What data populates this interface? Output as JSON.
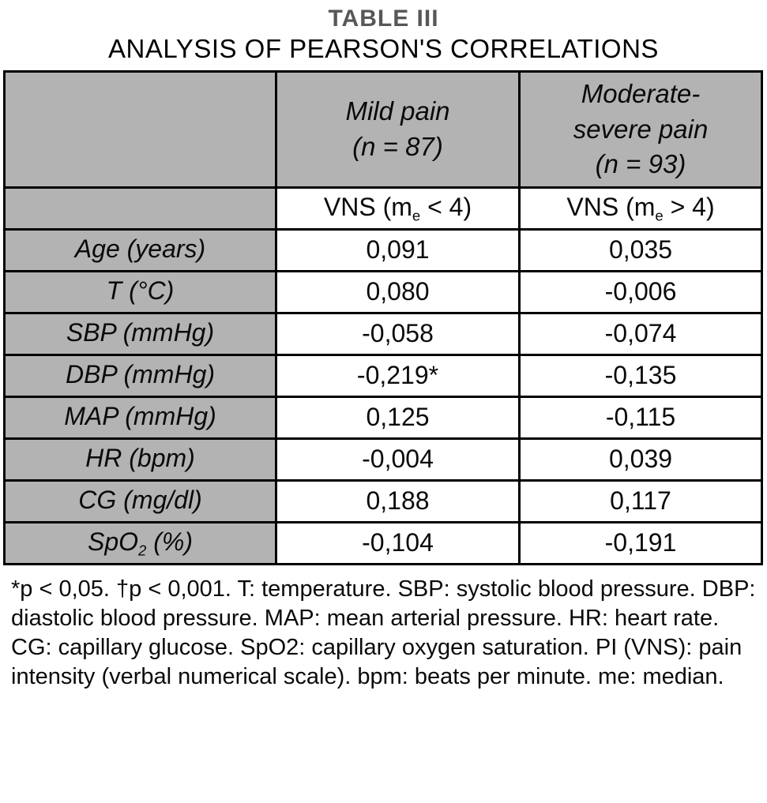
{
  "title": {
    "line1": "TABLE III",
    "line2": "ANALYSIS OF PEARSON'S CORRELATIONS"
  },
  "table": {
    "columns": [
      {
        "lines": [
          "Mild pain",
          "(n = 87)"
        ]
      },
      {
        "lines": [
          "Moderate-",
          "severe pain",
          "(n = 93)"
        ]
      }
    ],
    "subheader": [
      {
        "prefix": "VNS (m",
        "sub": "e",
        "suffix": " < 4)"
      },
      {
        "prefix": "VNS (m",
        "sub": "e",
        "suffix": " > 4)"
      }
    ],
    "rows": [
      {
        "label": "Age (years)",
        "label_sub": "",
        "label_suffix": "",
        "mild": "0,091",
        "moderate_severe": "0,035"
      },
      {
        "label": "T (°C)",
        "label_sub": "",
        "label_suffix": "",
        "mild": "0,080",
        "moderate_severe": "-0,006"
      },
      {
        "label": "SBP (mmHg)",
        "label_sub": "",
        "label_suffix": "",
        "mild": "-0,058",
        "moderate_severe": "-0,074"
      },
      {
        "label": "DBP (mmHg)",
        "label_sub": "",
        "label_suffix": "",
        "mild": "-0,219*",
        "moderate_severe": "-0,135"
      },
      {
        "label": "MAP (mmHg)",
        "label_sub": "",
        "label_suffix": "",
        "mild": "0,125",
        "moderate_severe": "-0,115"
      },
      {
        "label": "HR (bpm)",
        "label_sub": "",
        "label_suffix": "",
        "mild": "-0,004",
        "moderate_severe": "0,039"
      },
      {
        "label": "CG (mg/dl)",
        "label_sub": "",
        "label_suffix": "",
        "mild": "0,188",
        "moderate_severe": "0,117"
      },
      {
        "label": "SpO",
        "label_sub": "2",
        "label_suffix": " (%)",
        "mild": "-0,104",
        "moderate_severe": "-0,191"
      }
    ]
  },
  "footnote": "*p < 0,05. †p < 0,001. T: temperature. SBP: systolic blood pressure. DBP: diastolic blood pressure. MAP: mean arterial pressure. HR: heart rate. CG: capillary glucose. SpO2: capillary oxygen saturation. PI (VNS): pain intensity (verbal numerical scale). bpm: beats per minute. me: median.",
  "colors": {
    "header_bg": "#b3b3b3",
    "border": "#000000",
    "title_gray": "#57575a"
  }
}
